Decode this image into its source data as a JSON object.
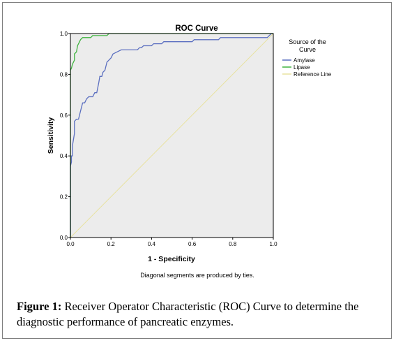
{
  "chart_data": {
    "type": "line",
    "title": "ROC Curve",
    "xlabel": "1 - Specificity",
    "ylabel": "Sensitivity",
    "xlim": [
      0.0,
      1.0
    ],
    "ylim": [
      0.0,
      1.0
    ],
    "x_ticks": [
      "0.0",
      "0.2",
      "0.4",
      "0.6",
      "0.8",
      "1.0"
    ],
    "y_ticks": [
      "0.0",
      "0.2",
      "0.4",
      "0.6",
      "0.8",
      "1.0"
    ],
    "grid": false,
    "legend_title": "Source of the Curve",
    "legend_position": "right",
    "footnote": "Diagonal segments are produced by ties.",
    "series": [
      {
        "name": "Amylase",
        "color": "#5b6fc0",
        "points": [
          [
            0.0,
            0.0
          ],
          [
            0.0,
            0.35
          ],
          [
            0.005,
            0.37
          ],
          [
            0.005,
            0.4
          ],
          [
            0.01,
            0.4
          ],
          [
            0.01,
            0.45
          ],
          [
            0.02,
            0.51
          ],
          [
            0.02,
            0.57
          ],
          [
            0.03,
            0.58
          ],
          [
            0.04,
            0.58
          ],
          [
            0.05,
            0.62
          ],
          [
            0.06,
            0.66
          ],
          [
            0.07,
            0.66
          ],
          [
            0.08,
            0.68
          ],
          [
            0.09,
            0.69
          ],
          [
            0.11,
            0.69
          ],
          [
            0.12,
            0.71
          ],
          [
            0.13,
            0.71
          ],
          [
            0.14,
            0.76
          ],
          [
            0.145,
            0.79
          ],
          [
            0.155,
            0.79
          ],
          [
            0.16,
            0.81
          ],
          [
            0.17,
            0.82
          ],
          [
            0.18,
            0.86
          ],
          [
            0.2,
            0.88
          ],
          [
            0.21,
            0.9
          ],
          [
            0.23,
            0.91
          ],
          [
            0.25,
            0.92
          ],
          [
            0.33,
            0.92
          ],
          [
            0.34,
            0.93
          ],
          [
            0.35,
            0.93
          ],
          [
            0.36,
            0.94
          ],
          [
            0.4,
            0.94
          ],
          [
            0.41,
            0.95
          ],
          [
            0.45,
            0.95
          ],
          [
            0.46,
            0.96
          ],
          [
            0.6,
            0.96
          ],
          [
            0.61,
            0.97
          ],
          [
            0.73,
            0.97
          ],
          [
            0.74,
            0.98
          ],
          [
            0.97,
            0.98
          ],
          [
            0.98,
            0.99
          ],
          [
            0.99,
            1.0
          ],
          [
            1.0,
            1.0
          ]
        ]
      },
      {
        "name": "Lipase",
        "color": "#3fb33f",
        "points": [
          [
            0.0,
            0.0
          ],
          [
            0.0,
            0.82
          ],
          [
            0.005,
            0.83
          ],
          [
            0.01,
            0.85
          ],
          [
            0.015,
            0.86
          ],
          [
            0.02,
            0.87
          ],
          [
            0.02,
            0.9
          ],
          [
            0.03,
            0.91
          ],
          [
            0.035,
            0.94
          ],
          [
            0.04,
            0.95
          ],
          [
            0.05,
            0.97
          ],
          [
            0.06,
            0.98
          ],
          [
            0.1,
            0.98
          ],
          [
            0.11,
            0.99
          ],
          [
            0.18,
            0.99
          ],
          [
            0.19,
            1.0
          ],
          [
            1.0,
            1.0
          ]
        ]
      },
      {
        "name": "Reference Line",
        "color": "#e8e2a0",
        "points": [
          [
            0.0,
            0.0
          ],
          [
            1.0,
            1.0
          ]
        ]
      }
    ]
  },
  "caption": {
    "label": "Figure 1:",
    "text": " Receiver Operator Characteristic (ROC) Curve to determine the diagnostic performance of pancreatic enzymes."
  }
}
